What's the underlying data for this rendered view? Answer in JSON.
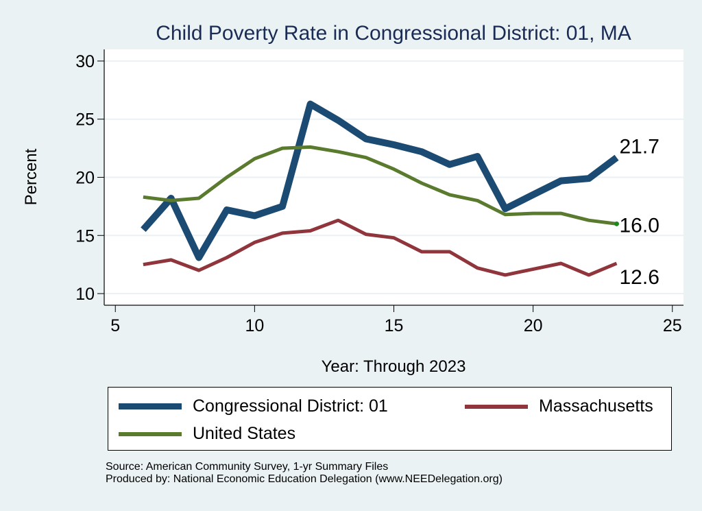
{
  "chart_data": {
    "type": "line",
    "title": "Child Poverty Rate in Congressional District:  01, MA",
    "xlabel": "Year: Through 2023",
    "ylabel": "Percent",
    "xlim": [
      4.6,
      25.4
    ],
    "ylim": [
      9.0,
      31.0
    ],
    "xticks": [
      5,
      10,
      15,
      20,
      25
    ],
    "yticks": [
      10,
      15,
      20,
      25,
      30
    ],
    "grid": true,
    "legend_position": "bottom",
    "x": [
      6,
      7,
      8,
      9,
      10,
      11,
      12,
      13,
      14,
      15,
      16,
      17,
      18,
      19,
      20,
      21,
      22,
      23
    ],
    "series": [
      {
        "name": "Congressional District:  01",
        "color": "#1B4A72",
        "values": [
          15.5,
          18.2,
          13.1,
          17.2,
          16.7,
          17.5,
          26.3,
          24.9,
          23.3,
          22.8,
          22.2,
          21.1,
          21.8,
          17.3,
          18.5,
          19.7,
          19.9,
          21.7
        ],
        "end_label": "21.7"
      },
      {
        "name": "Massachusetts",
        "color": "#90353B",
        "values": [
          12.5,
          12.9,
          12.0,
          13.1,
          14.4,
          15.2,
          15.4,
          16.3,
          15.1,
          14.8,
          13.6,
          13.6,
          12.2,
          11.6,
          12.1,
          12.6,
          11.6,
          12.6
        ],
        "end_label": "12.6"
      },
      {
        "name": "United States",
        "color": "#5A7A2E",
        "values": [
          18.3,
          18.0,
          18.2,
          20.0,
          21.6,
          22.5,
          22.6,
          22.2,
          21.7,
          20.7,
          19.5,
          18.5,
          18.0,
          16.8,
          16.9,
          16.9,
          16.3,
          16.0
        ],
        "end_label": "16.0"
      }
    ],
    "notes": [
      "Source: American Community Survey, 1-yr Summary Files",
      "Produced by: National Economic Education Delegation (www.NEEDelegation.org)"
    ]
  },
  "legend": {
    "items": [
      {
        "label": "Congressional District:  01",
        "color": "#1B4A72"
      },
      {
        "label": "Massachusetts",
        "color": "#90353B"
      },
      {
        "label": "United States",
        "color": "#5A7A2E"
      }
    ]
  },
  "colors": {
    "background": "#EAF2F3",
    "plot_background": "#FFFFFF",
    "gridline": "#EAF2F3",
    "title": "#1A2B55"
  }
}
